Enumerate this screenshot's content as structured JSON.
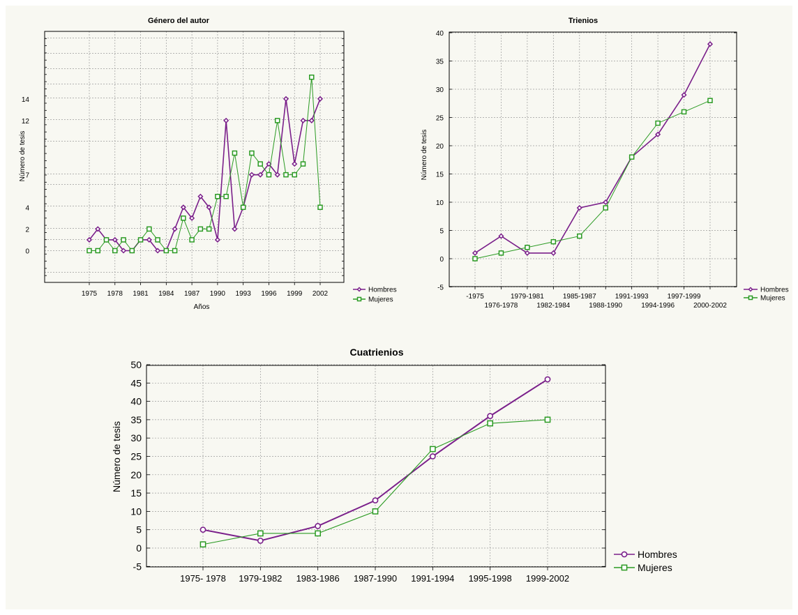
{
  "colors": {
    "hombres": "#7a1f8a",
    "mujeres": "#2a9a22",
    "grid": "#9a9a9a",
    "axis": "#000000",
    "panel_bg": "#f8f8f2"
  },
  "chart_data": [
    {
      "type": "line",
      "title": "Género del autor",
      "xlabel": "Años",
      "ylabel": "Número de tesis",
      "x_tick_labels": [
        "1975",
        "1978",
        "1981",
        "1984",
        "1987",
        "1990",
        "1993",
        "1996",
        "1999",
        "2002"
      ],
      "y_tick_labels": [
        "0",
        "2",
        "4",
        "7",
        "12",
        "14"
      ],
      "grid": true,
      "legend": "right-bottom",
      "x": [
        1975,
        1976,
        1977,
        1978,
        1979,
        1980,
        1981,
        1982,
        1983,
        1984,
        1985,
        1986,
        1987,
        1988,
        1989,
        1990,
        1991,
        1992,
        1993,
        1994,
        1995,
        1996,
        1997,
        1998,
        1999,
        2000,
        2001,
        2002
      ],
      "series": [
        {
          "name": "Hombres",
          "marker": "diamond",
          "values": [
            1,
            2,
            1,
            1,
            0,
            0,
            1,
            1,
            0,
            0,
            2,
            4,
            3,
            5,
            4,
            1,
            12,
            2,
            4,
            7,
            7,
            8,
            7,
            14,
            8,
            12,
            12,
            14
          ]
        },
        {
          "name": "Mujeres",
          "marker": "square",
          "values": [
            0,
            0,
            1,
            0,
            1,
            0,
            1,
            2,
            1,
            0,
            0,
            3,
            1,
            2,
            2,
            5,
            5,
            9,
            4,
            9,
            8,
            7,
            12,
            7,
            7,
            8,
            16,
            4
          ]
        }
      ]
    },
    {
      "type": "line",
      "title": "Trienios",
      "xlabel": "",
      "ylabel": "Número de tesis",
      "categories": [
        "-1975",
        "1976-1978",
        "1979-1981",
        "1982-1984",
        "1985-1987",
        "1988-1990",
        "1991-1993",
        "1994-1996",
        "1997-1999",
        "2000-2002"
      ],
      "ylim": [
        -5,
        40
      ],
      "y_ticks": [
        -5,
        0,
        5,
        10,
        15,
        20,
        25,
        30,
        35,
        40
      ],
      "grid": true,
      "legend": "right-bottom",
      "series": [
        {
          "name": "Hombres",
          "marker": "diamond",
          "values": [
            1,
            4,
            1,
            1,
            9,
            10,
            18,
            22,
            29,
            38
          ]
        },
        {
          "name": "Mujeres",
          "marker": "square",
          "values": [
            0,
            1,
            2,
            3,
            4,
            9,
            18,
            24,
            26,
            28
          ]
        }
      ]
    },
    {
      "type": "line",
      "title": "Cuatrienios",
      "xlabel": "",
      "ylabel": "Número de tesis",
      "categories": [
        "1975- 1978",
        "1979-1982",
        "1983-1986",
        "1987-1990",
        "1991-1994",
        "1995-1998",
        "1999-2002"
      ],
      "ylim": [
        -5,
        50
      ],
      "y_ticks": [
        -5,
        0,
        5,
        10,
        15,
        20,
        25,
        30,
        35,
        40,
        45,
        50
      ],
      "grid": true,
      "legend": "right-bottom",
      "series": [
        {
          "name": "Hombres",
          "marker": "circle",
          "values": [
            5,
            2,
            6,
            13,
            25,
            36,
            46
          ]
        },
        {
          "name": "Mujeres",
          "marker": "square",
          "values": [
            1,
            4,
            4,
            10,
            27,
            34,
            35
          ]
        }
      ]
    }
  ]
}
